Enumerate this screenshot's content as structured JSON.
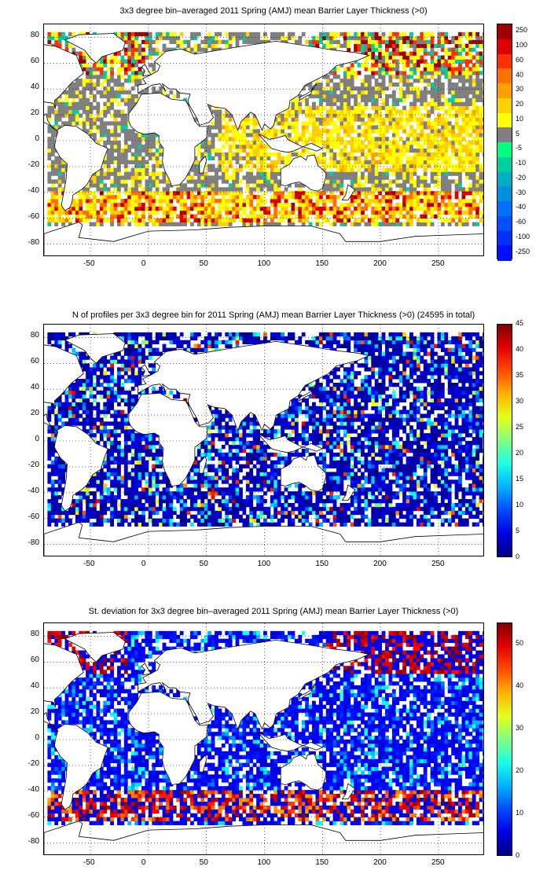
{
  "colors": {
    "land": "#ffffff",
    "coastline": "#000000",
    "no_thickness_gray": "#808080",
    "grid": "#000000"
  },
  "map_axes": {
    "lon_ticks": [
      "-50",
      "0",
      "50",
      "100",
      "150",
      "200",
      "250"
    ],
    "lat_ticks": [
      "80",
      "60",
      "40",
      "20",
      "0",
      "-20",
      "-40",
      "-60",
      "-80"
    ],
    "lon_range": [
      -90,
      290
    ],
    "lat_range": [
      -90,
      90
    ],
    "grid": "dotted"
  },
  "panels": [
    {
      "title": "3x3 degree bin–averaged 2011 Spring (AMJ) mean Barrier Layer Thickness (>0)",
      "colorbar": {
        "type": "categorical",
        "labels": [
          "250",
          "100",
          "60",
          "40",
          "30",
          "20",
          "10",
          "5",
          "-5",
          "-10",
          "-20",
          "-30",
          "-40",
          "-60",
          "-100",
          "-250"
        ],
        "swatches": [
          "#a00000",
          "#e00000",
          "#ff3000",
          "#ff7000",
          "#ffa000",
          "#ffd000",
          "#ffff00",
          "#808080",
          "#00ff80",
          "#00d0a0",
          "#00b0c0",
          "#0090e0",
          "#0070ff",
          "#0050ff",
          "#0030ff",
          "#0010ff"
        ]
      }
    },
    {
      "title": "N of profiles per 3x3 degree bin for 2011 Spring (AMJ) mean Barrier Layer Thickness (>0) (24595 in total)",
      "colorbar": {
        "type": "continuous",
        "labels": [
          "45",
          "40",
          "35",
          "30",
          "25",
          "20",
          "15",
          "10",
          "5",
          "0"
        ],
        "range": [
          0,
          45
        ]
      }
    },
    {
      "title": "St. deviation for 3x3 degree bin–averaged 2011 Spring (AMJ) mean Barrier Layer Thickness (>0)",
      "colorbar": {
        "type": "continuous",
        "labels": [
          "50",
          "40",
          "30",
          "20",
          "10",
          "0"
        ],
        "range": [
          0,
          55
        ]
      }
    }
  ]
}
